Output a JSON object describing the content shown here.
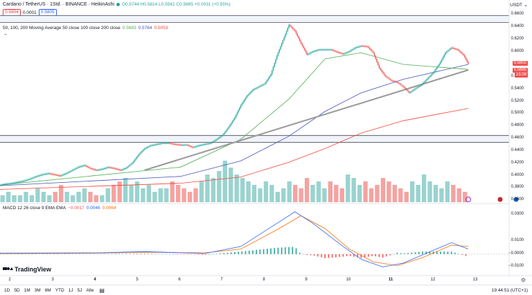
{
  "header": {
    "symbol_title": "Cardano / TetherUS · 1Std. · BINANCE · HeikinAshi",
    "ohlc": "O0.5744 H0.5814 L0.5561 C0.5685 +0.0031 (+0.55%)",
    "sell_price": "0.5804",
    "spread": "0.0001",
    "buy_price": "0.5805",
    "currency": "USDT",
    "volume_label": "Vol · ADA",
    "volume_value": "15.963M",
    "ma_label": "50, 100, 200 Moving Average 50 close 100 close 200 close",
    "ma_values": [
      "0.5683",
      "0.5764",
      "0.5053"
    ],
    "macd_label": "MACD 12 26 close 9 EMA EMA",
    "macd_values": [
      "−0.0017",
      "0.0046",
      "0.0064"
    ]
  },
  "price_axis": {
    "labels": [
      "0.6600",
      "0.6400",
      "0.6200",
      "0.6000",
      "0.5800",
      "0.5600",
      "0.5400",
      "0.5200",
      "0.5000",
      "0.4800",
      "0.4600",
      "0.4400",
      "0.4200",
      "0.4000",
      "0.3800",
      "0.3600"
    ],
    "current_price_tag": "0.5802",
    "last_price_tag": "0.5685",
    "countdown_tag": "15:08"
  },
  "macd_axis": {
    "labels": [
      "0.0300",
      "0.0100",
      "−0.0000",
      "−0.0100"
    ]
  },
  "time_axis": {
    "labels": [
      "2",
      "3",
      "4",
      "5",
      "6",
      "7",
      "8",
      "9",
      "10",
      "11",
      "12",
      "13"
    ]
  },
  "bottom_bar": {
    "ranges": [
      "1D",
      "5D",
      "1M",
      "3M",
      "6M",
      "YTD",
      "1J",
      "5J",
      "Alle"
    ],
    "clock": "19:44:51 (UTC+1)"
  },
  "logo_text": "TradingView",
  "colors": {
    "up": "#26a69a",
    "down": "#ef5350",
    "ma50": "#4caf50",
    "ma100": "#3f51b5",
    "ma200": "#f44336",
    "trendline": "#9e9e9e",
    "macd_line": "#2962ff",
    "signal_line": "#ff6d00"
  },
  "chart_data": [
    {
      "type": "candlestick",
      "title": "Cardano / TetherUS · 1Std. · BINANCE · HeikinAshi",
      "x": [
        "2",
        "3",
        "4",
        "5",
        "6",
        "7",
        "8",
        "9",
        "10",
        "11",
        "12",
        "13"
      ],
      "ylim": [
        0.36,
        0.66
      ],
      "price_path": [
        [
          0,
          0.381
        ],
        [
          5,
          0.383
        ],
        [
          10,
          0.384
        ],
        [
          15,
          0.386
        ],
        [
          20,
          0.388
        ],
        [
          25,
          0.391
        ],
        [
          30,
          0.395
        ],
        [
          35,
          0.398
        ],
        [
          40,
          0.4
        ],
        [
          45,
          0.398
        ],
        [
          50,
          0.396
        ],
        [
          55,
          0.4
        ],
        [
          60,
          0.405
        ],
        [
          65,
          0.41
        ],
        [
          70,
          0.413
        ],
        [
          75,
          0.408
        ],
        [
          80,
          0.405
        ],
        [
          85,
          0.407
        ],
        [
          90,
          0.41
        ],
        [
          95,
          0.408
        ],
        [
          100,
          0.405
        ],
        [
          105,
          0.409
        ],
        [
          110,
          0.417
        ],
        [
          115,
          0.43
        ],
        [
          120,
          0.44
        ],
        [
          125,
          0.445
        ],
        [
          130,
          0.447
        ],
        [
          135,
          0.449
        ],
        [
          140,
          0.449
        ],
        [
          145,
          0.447
        ],
        [
          150,
          0.446
        ],
        [
          155,
          0.446
        ],
        [
          160,
          0.442
        ],
        [
          165,
          0.445
        ],
        [
          170,
          0.447
        ],
        [
          175,
          0.449
        ],
        [
          180,
          0.455
        ],
        [
          185,
          0.462
        ],
        [
          190,
          0.475
        ],
        [
          195,
          0.49
        ],
        [
          200,
          0.51
        ],
        [
          205,
          0.525
        ],
        [
          210,
          0.535
        ],
        [
          215,
          0.54
        ],
        [
          220,
          0.545
        ],
        [
          225,
          0.56
        ],
        [
          230,
          0.59
        ],
        [
          235,
          0.615
        ],
        [
          240,
          0.64
        ],
        [
          245,
          0.63
        ],
        [
          250,
          0.61
        ],
        [
          255,
          0.592
        ],
        [
          260,
          0.597
        ],
        [
          265,
          0.6
        ],
        [
          270,
          0.6
        ],
        [
          275,
          0.6
        ],
        [
          280,
          0.596
        ],
        [
          285,
          0.593
        ],
        [
          290,
          0.597
        ],
        [
          295,
          0.603
        ],
        [
          300,
          0.606
        ],
        [
          305,
          0.605
        ],
        [
          310,
          0.595
        ],
        [
          315,
          0.57
        ],
        [
          320,
          0.557
        ],
        [
          325,
          0.55
        ],
        [
          330,
          0.547
        ],
        [
          335,
          0.54
        ],
        [
          340,
          0.53
        ],
        [
          345,
          0.537
        ],
        [
          350,
          0.543
        ],
        [
          355,
          0.553
        ],
        [
          360,
          0.563
        ],
        [
          365,
          0.577
        ],
        [
          370,
          0.595
        ],
        [
          375,
          0.603
        ],
        [
          380,
          0.6
        ],
        [
          385,
          0.591
        ],
        [
          389,
          0.577
        ]
      ],
      "ma_50_path": [
        [
          0,
          0.381
        ],
        [
          150,
          0.41
        ],
        [
          200,
          0.455
        ],
        [
          240,
          0.52
        ],
        [
          270,
          0.585
        ],
        [
          300,
          0.595
        ],
        [
          335,
          0.576
        ],
        [
          389,
          0.568
        ]
      ],
      "ma_100_path": [
        [
          0,
          0.38
        ],
        [
          150,
          0.395
        ],
        [
          200,
          0.42
        ],
        [
          240,
          0.46
        ],
        [
          270,
          0.5
        ],
        [
          300,
          0.53
        ],
        [
          335,
          0.552
        ],
        [
          389,
          0.576
        ]
      ],
      "ma_200_path": [
        [
          0,
          0.374
        ],
        [
          150,
          0.384
        ],
        [
          200,
          0.394
        ],
        [
          240,
          0.418
        ],
        [
          270,
          0.44
        ],
        [
          300,
          0.465
        ],
        [
          335,
          0.485
        ],
        [
          389,
          0.505
        ]
      ],
      "trendline": [
        [
          120,
          0.405
        ],
        [
          389,
          0.567
        ]
      ],
      "hlines": [
        0.6495,
        0.4555
      ]
    },
    {
      "type": "bar",
      "title": "Vol · ADA",
      "series": [
        {
          "name": "Vol · ADA",
          "values": [
            2,
            3,
            2,
            2,
            3,
            2,
            4,
            3,
            2,
            3,
            5,
            3,
            2,
            3,
            4,
            3,
            2,
            2,
            4,
            5,
            6,
            7,
            5,
            6,
            4,
            5,
            3,
            4,
            4,
            6,
            5,
            4,
            3,
            4,
            6,
            8,
            7,
            9,
            12,
            10,
            8,
            7,
            6,
            5,
            4,
            6,
            5,
            3,
            4,
            6,
            5,
            4,
            7,
            5,
            6,
            4,
            6,
            5,
            4,
            8,
            7,
            5,
            6,
            4,
            5,
            7,
            6,
            5,
            4,
            3,
            6,
            5,
            8,
            6,
            5,
            4,
            6,
            5,
            4,
            3
          ]
        }
      ]
    },
    {
      "type": "line",
      "title": "MACD 12 26 close 9 EMA EMA",
      "ylim": [
        -0.012,
        0.035
      ],
      "macd_path": [
        [
          0,
          0.0008
        ],
        [
          80,
          0.001
        ],
        [
          120,
          0.002
        ],
        [
          170,
          0.0005
        ],
        [
          200,
          0.006
        ],
        [
          230,
          0.024
        ],
        [
          245,
          0.033
        ],
        [
          260,
          0.024
        ],
        [
          285,
          0.006
        ],
        [
          300,
          -0.004
        ],
        [
          318,
          -0.01
        ],
        [
          335,
          -0.007
        ],
        [
          360,
          0.003
        ],
        [
          375,
          0.009
        ],
        [
          389,
          0.004
        ]
      ],
      "signal_path": [
        [
          0,
          0.0005
        ],
        [
          80,
          0.0008
        ],
        [
          120,
          0.0015
        ],
        [
          170,
          0.001
        ],
        [
          200,
          0.004
        ],
        [
          230,
          0.019
        ],
        [
          250,
          0.03
        ],
        [
          270,
          0.02
        ],
        [
          290,
          0.004
        ],
        [
          310,
          -0.006
        ],
        [
          330,
          -0.009
        ],
        [
          350,
          -0.003
        ],
        [
          375,
          0.007
        ],
        [
          389,
          0.006
        ]
      ]
    }
  ]
}
